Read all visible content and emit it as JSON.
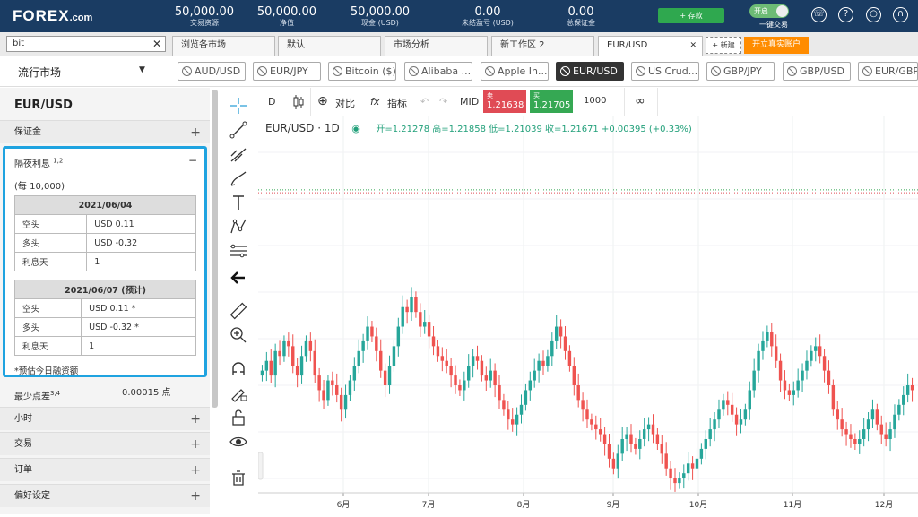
{
  "topbar": {
    "logo": "FOREX",
    "logo_suffix": ".com",
    "stats": [
      {
        "value": "50,000.00",
        "label": "交易资源"
      },
      {
        "value": "50,000.00",
        "label": "净值"
      },
      {
        "value": "50,000.00",
        "label": "现金 (USD)"
      },
      {
        "value": "0.00",
        "label": "未结盈亏 (USD)"
      },
      {
        "value": "0.00",
        "label": "总保证金"
      }
    ],
    "deposit_label": "+ 存款",
    "toggle_label": "开启",
    "one_click_label": "一键交易",
    "icons": [
      "phone-icon",
      "help-icon",
      "lightbulb-icon",
      "headset-icon",
      "profile-icon"
    ]
  },
  "tabs": {
    "search_value": "bit",
    "items": [
      "浏览各市场",
      "默认",
      "市场分析",
      "新工作区 2",
      "EUR/USD"
    ],
    "active_index": 4,
    "new_label": "+ 新建",
    "real_account_label": "开立真实账户"
  },
  "markets": {
    "selector": "流行市场",
    "chips": [
      "AUD/USD",
      "EUR/JPY",
      "Bitcoin ($)",
      "Alibaba ...",
      "Apple In...",
      "EUR/USD",
      "US Crud...",
      "GBP/JPY",
      "GBP/USD",
      "EUR/GBP"
    ],
    "selected_index": 5
  },
  "panel": {
    "title": "EUR/USD",
    "margin_label": "保证金",
    "overnight_title": "隔夜利息",
    "overnight_sup": "1,2",
    "per_label": "(每 10,000)",
    "table1": {
      "header": "2021/06/04",
      "rows": [
        [
          "空头",
          "USD 0.11"
        ],
        [
          "多头",
          "USD -0.32"
        ],
        [
          "利息天",
          "1"
        ]
      ]
    },
    "table2": {
      "header": "2021/06/07 (预计)",
      "rows": [
        [
          "空头",
          "USD 0.11 *"
        ],
        [
          "多头",
          "USD -0.32 *"
        ],
        [
          "利息天",
          "1"
        ]
      ]
    },
    "note": "*预估今日融资额",
    "min_spread_label": "最少点差",
    "min_spread_sup": "3,4",
    "min_spread_value": "0.00015 点",
    "sections": [
      "小时",
      "交易",
      "订单",
      "偏好设定"
    ]
  },
  "chartbar": {
    "interval": "D",
    "compare": "对比",
    "indicators": "指标",
    "mid": "MID",
    "sell_label": "卖",
    "sell_price": "1.21638",
    "buy_label": "买",
    "buy_price": "1.21705",
    "quantity": "1000"
  },
  "legend": {
    "symbol": "EUR/USD · 1D",
    "ohlc": "开=1.21278 高=1.21858 低=1.21039 收=1.21671 +0.00395 (+0.33%)"
  },
  "chart_data": {
    "type": "candlestick",
    "x_tick_labels": [
      "6月",
      "7月",
      "8月",
      "9月",
      "10月",
      "11月",
      "12月"
    ],
    "reference_lines": [
      1.2164,
      1.217
    ],
    "ylim": [
      1.155,
      1.232
    ],
    "up_color": "#26a69a",
    "down_color": "#ef5350",
    "series": [
      {
        "values": [
          1.18,
          1.182,
          1.179,
          1.184,
          1.183,
          1.186,
          1.185,
          1.181,
          1.179,
          1.183,
          1.186,
          1.184,
          1.179,
          1.176,
          1.174,
          1.178,
          1.177,
          1.175,
          1.172,
          1.175,
          1.178,
          1.181,
          1.184,
          1.186,
          1.189,
          1.187,
          1.184,
          1.18,
          1.177,
          1.181,
          1.185,
          1.189,
          1.193,
          1.192,
          1.195,
          1.192,
          1.189,
          1.19,
          1.187,
          1.185,
          1.183,
          1.182,
          1.181,
          1.179,
          1.177,
          1.176,
          1.178,
          1.181,
          1.183,
          1.182,
          1.179,
          1.178,
          1.18,
          1.177,
          1.174,
          1.172,
          1.17,
          1.169,
          1.171,
          1.173,
          1.176,
          1.178,
          1.18,
          1.182,
          1.181,
          1.183,
          1.186,
          1.189,
          1.187,
          1.184,
          1.181,
          1.177,
          1.174,
          1.172,
          1.17,
          1.169,
          1.168,
          1.167,
          1.165,
          1.162,
          1.16,
          1.163,
          1.166,
          1.167,
          1.165,
          1.164,
          1.166,
          1.168,
          1.169,
          1.167,
          1.165,
          1.163,
          1.16,
          1.158,
          1.157,
          1.158,
          1.159,
          1.161,
          1.16,
          1.162,
          1.164,
          1.166,
          1.168,
          1.17,
          1.172,
          1.174,
          1.173,
          1.171,
          1.169,
          1.17,
          1.172,
          1.176,
          1.18,
          1.184,
          1.186,
          1.188,
          1.185,
          1.182,
          1.178,
          1.176,
          1.175,
          1.176,
          1.178,
          1.18,
          1.182,
          1.184,
          1.185,
          1.183,
          1.18,
          1.177,
          1.172,
          1.17,
          1.168,
          1.167,
          1.166,
          1.165,
          1.166,
          1.168,
          1.17,
          1.172,
          1.169,
          1.167,
          1.166,
          1.168,
          1.171,
          1.173,
          1.175,
          1.177,
          1.176
        ]
      }
    ]
  }
}
